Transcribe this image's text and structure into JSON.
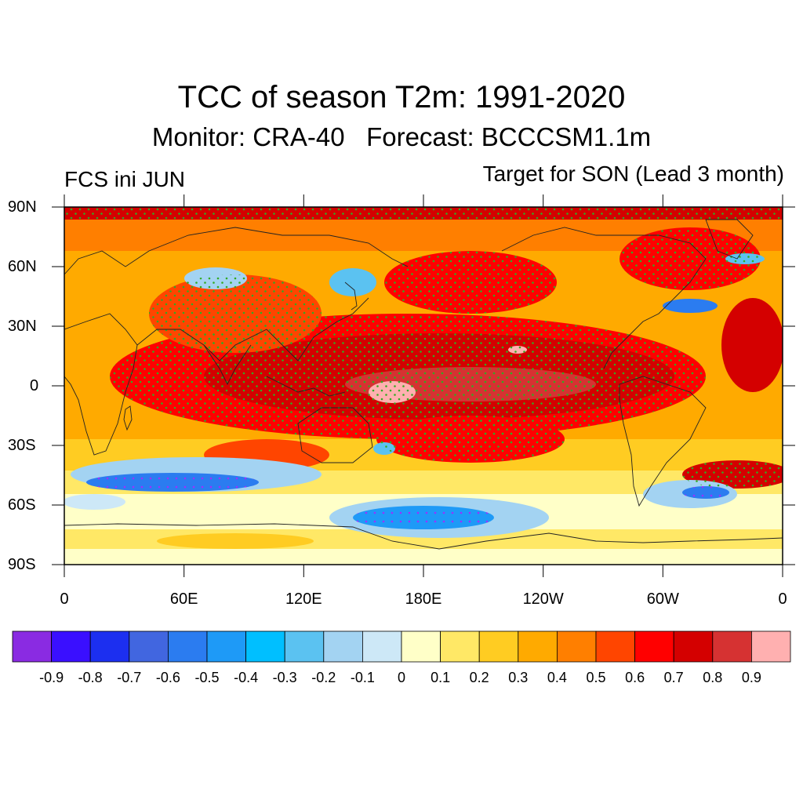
{
  "title": "TCC of season T2m: 1991-2020",
  "subtitle": "Monitor: CRA-40   Forecast: BCCCSM1.1m",
  "left_label": "FCS ini JUN",
  "right_label": "Target for SON (Lead 3 month)",
  "y_ticks": [
    "90N",
    "60N",
    "30N",
    "0",
    "30S",
    "60S",
    "90S"
  ],
  "x_ticks": [
    "0",
    "60E",
    "120E",
    "180E",
    "120W",
    "60W",
    "0"
  ],
  "colorbar": {
    "colors": [
      "#8a2be2",
      "#3a0fff",
      "#1c2ff0",
      "#4166e0",
      "#2b7cf0",
      "#1e9af7",
      "#00bfff",
      "#5bc2f1",
      "#a3d3f2",
      "#cde8f7",
      "#ffffc8",
      "#ffe866",
      "#ffcc22",
      "#ffaa00",
      "#ff7f00",
      "#ff4500",
      "#ff0000",
      "#d40000",
      "#d63232",
      "#ffb0b0"
    ],
    "labels": [
      "-0.9",
      "-0.8",
      "-0.7",
      "-0.6",
      "-0.5",
      "-0.4",
      "-0.3",
      "-0.2",
      "-0.1",
      "0",
      "0.1",
      "0.2",
      "0.3",
      "0.4",
      "0.5",
      "0.6",
      "0.7",
      "0.8",
      "0.9"
    ]
  }
}
